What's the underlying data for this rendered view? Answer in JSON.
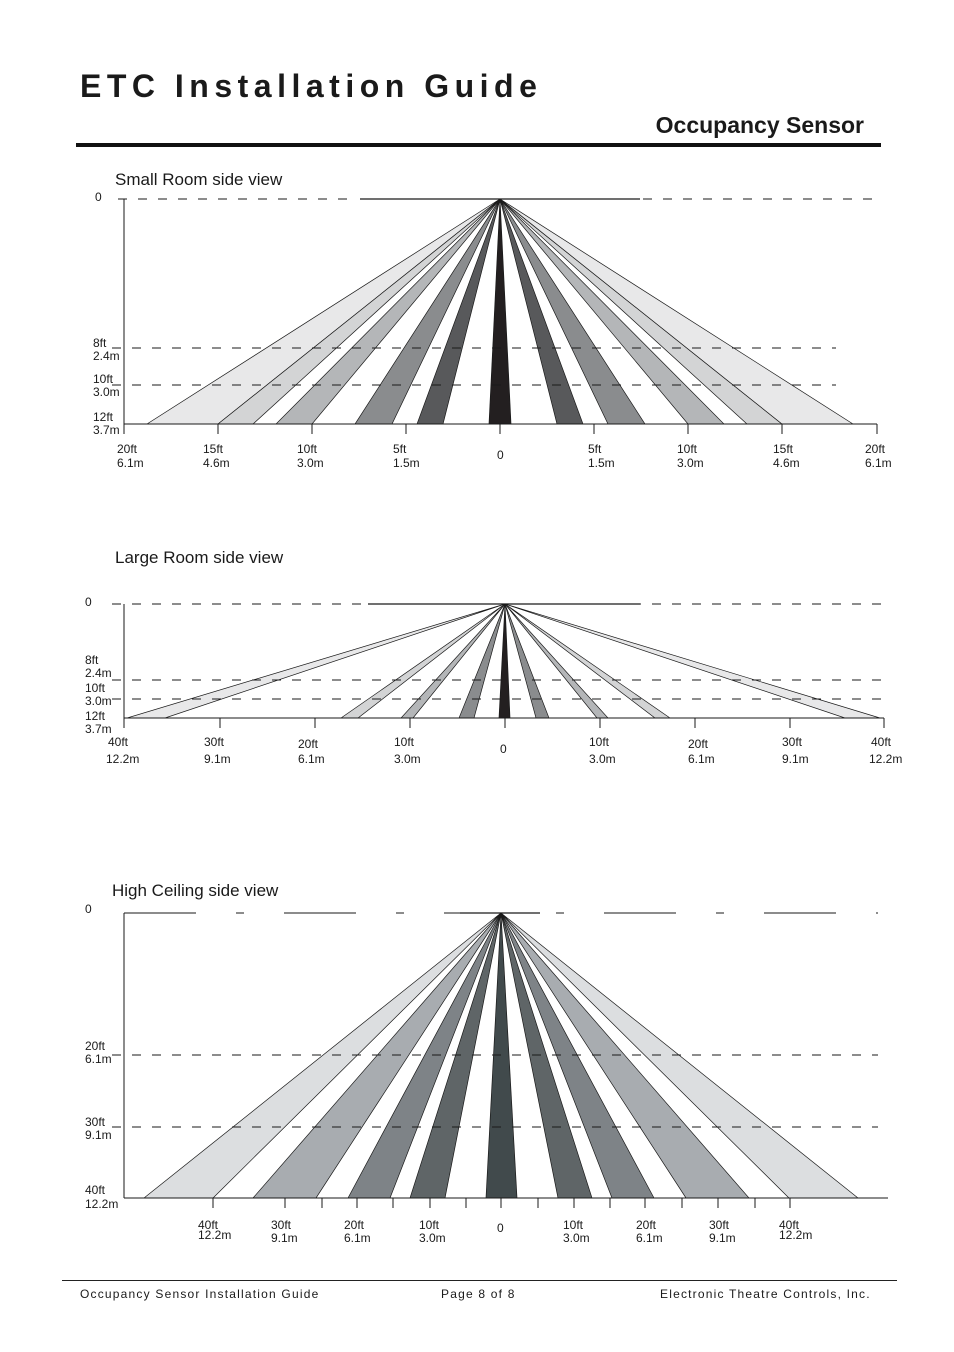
{
  "header": {
    "title": "ETC Installation Guide",
    "subtitle": "Occupancy Sensor"
  },
  "diagrams": [
    {
      "title": "Small Room side view",
      "zero_label": "0",
      "heights": [
        {
          "ft": "8ft",
          "m": "2.4m"
        },
        {
          "ft": "10ft",
          "m": "3.0m"
        },
        {
          "ft": "12ft",
          "m": "3.7m"
        }
      ],
      "distances": [
        {
          "ft": "20ft",
          "m": "6.1m"
        },
        {
          "ft": "15ft",
          "m": "4.6m"
        },
        {
          "ft": "10ft",
          "m": "3.0m"
        },
        {
          "ft": "5ft",
          "m": "1.5m"
        },
        {
          "ft": "0",
          "m": ""
        },
        {
          "ft": "5ft",
          "m": "1.5m"
        },
        {
          "ft": "10ft",
          "m": "3.0m"
        },
        {
          "ft": "15ft",
          "m": "4.6m"
        },
        {
          "ft": "20ft",
          "m": "6.1m"
        }
      ]
    },
    {
      "title": "Large Room side view",
      "zero_label": "0",
      "heights": [
        {
          "ft": "8ft",
          "m": "2.4m"
        },
        {
          "ft": "10ft",
          "m": "3.0m"
        },
        {
          "ft": "12ft",
          "m": "3.7m"
        }
      ],
      "distances": [
        {
          "ft": "40ft",
          "m": "12.2m"
        },
        {
          "ft": "30ft",
          "m": "9.1m"
        },
        {
          "ft": "20ft",
          "m": "6.1m"
        },
        {
          "ft": "10ft",
          "m": "3.0m"
        },
        {
          "ft": "0",
          "m": ""
        },
        {
          "ft": "10ft",
          "m": "3.0m"
        },
        {
          "ft": "20ft",
          "m": "6.1m"
        },
        {
          "ft": "30ft",
          "m": "9.1m"
        },
        {
          "ft": "40ft",
          "m": "12.2m"
        }
      ]
    },
    {
      "title": "High Ceiling side view",
      "zero_label": "0",
      "heights": [
        {
          "ft": "20ft",
          "m": "6.1m"
        },
        {
          "ft": "30ft",
          "m": "9.1m"
        },
        {
          "ft": "40ft",
          "m": "12.2m"
        }
      ],
      "distances": [
        {
          "ft": "40ft",
          "m": "12.2m"
        },
        {
          "ft": "30ft",
          "m": "9.1m"
        },
        {
          "ft": "20ft",
          "m": "6.1m"
        },
        {
          "ft": "10ft",
          "m": "3.0m"
        },
        {
          "ft": "0",
          "m": ""
        },
        {
          "ft": "10ft",
          "m": "3.0m"
        },
        {
          "ft": "20ft",
          "m": "6.1m"
        },
        {
          "ft": "30ft",
          "m": "9.1m"
        },
        {
          "ft": "40ft",
          "m": "12.2m"
        }
      ]
    }
  ],
  "footer": {
    "left": "Occupancy Sensor Installation Guide",
    "center": "Page 8 of 8",
    "right": "Electronic Theatre Controls, Inc."
  },
  "colors": {
    "beam_center": "#231f20",
    "beam_1": "#58595b",
    "beam_2": "#8a8c8e",
    "beam_3": "#b4b6b8",
    "beam_4": "#d3d4d5",
    "beam_5": "#e8e8e9",
    "high_center": "#414a4c",
    "high_1": "#5f6567",
    "high_2": "#7e8387",
    "high_3": "#a8acb0",
    "high_4": "#dcdee0"
  }
}
